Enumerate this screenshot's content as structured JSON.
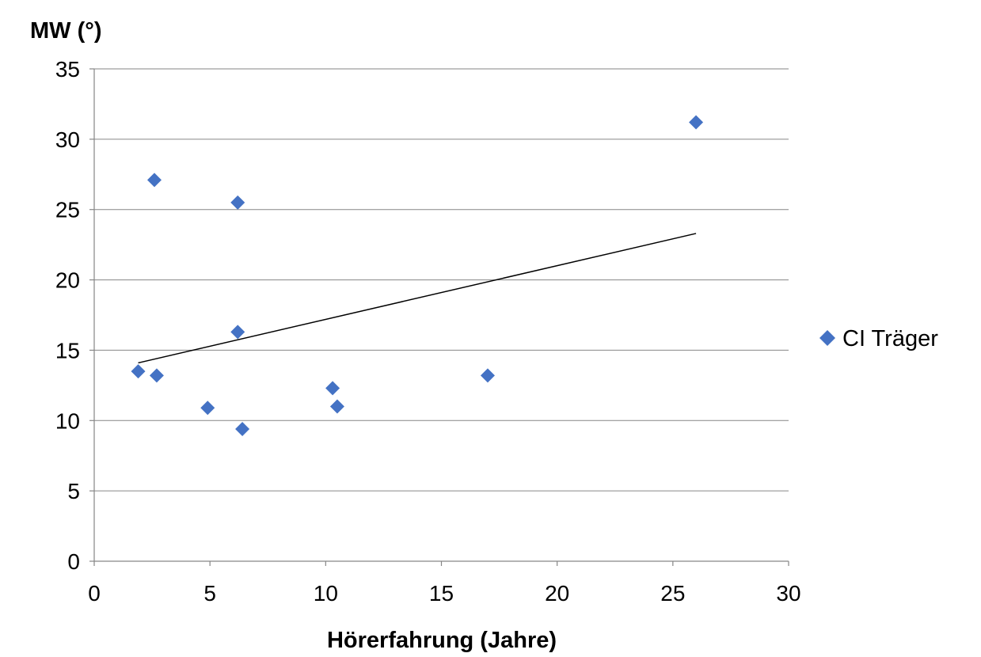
{
  "chart_data": {
    "type": "scatter",
    "ylabel": "MW (°)",
    "xlabel": "Hörerfahrung (Jahre)",
    "xlim": [
      0,
      30
    ],
    "ylim": [
      0,
      35
    ],
    "x_ticks": [
      0,
      5,
      10,
      15,
      20,
      25,
      30
    ],
    "y_ticks": [
      0,
      5,
      10,
      15,
      20,
      25,
      30,
      35
    ],
    "grid": "horizontal",
    "legend_position": "right",
    "series": [
      {
        "name": "CI Träger",
        "marker": "diamond",
        "color": "#4472C4",
        "points": [
          {
            "x": 1.9,
            "y": 13.5
          },
          {
            "x": 2.6,
            "y": 27.1
          },
          {
            "x": 2.7,
            "y": 13.2
          },
          {
            "x": 4.9,
            "y": 10.9
          },
          {
            "x": 6.2,
            "y": 25.5
          },
          {
            "x": 6.2,
            "y": 16.3
          },
          {
            "x": 6.4,
            "y": 9.4
          },
          {
            "x": 10.3,
            "y": 12.3
          },
          {
            "x": 10.5,
            "y": 11.0
          },
          {
            "x": 17.0,
            "y": 13.2
          },
          {
            "x": 26.0,
            "y": 31.2
          }
        ]
      }
    ],
    "trendline": {
      "type": "linear",
      "color": "#000000",
      "x": [
        1.9,
        26.0
      ],
      "y": [
        14.1,
        23.3
      ]
    }
  }
}
